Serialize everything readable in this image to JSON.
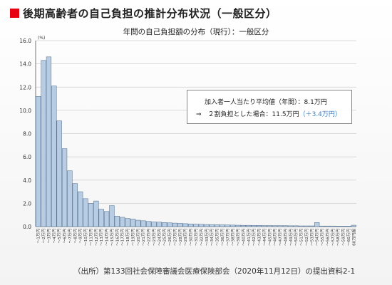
{
  "title": "後期高齢者の自己負担の推計分布状況（一般区分）",
  "subtitle": "年間の自己負担額の分布（現行）：一般区分",
  "source_note": "（出所）第133回社会保障審議会医療保険部会（2020年11月12日）の提出資料2-1",
  "info_box": {
    "line1": "加入者一人当たり平均値（年間）：8.1万円",
    "line2_prefix": "⇒　２割負担とした場合：11.5万円",
    "line2_highlight": "（＋3.4万円）"
  },
  "colors": {
    "accent": "#e60012",
    "bar_fill": "#b8cce4",
    "bar_stroke": "#4a6a8a",
    "highlight": "#3a7fc4"
  },
  "chart_data": {
    "type": "bar",
    "y_unit_label": "(%)",
    "ylim": [
      0,
      16
    ],
    "yticks": [
      "0.0",
      "2.0",
      "4.0",
      "6.0",
      "8.0",
      "10.0",
      "12.0",
      "14.0",
      "16.0"
    ],
    "grid": true,
    "categories": [
      "～1万円",
      "～2万円",
      "～3万円",
      "～4万円",
      "～5万円",
      "～6万円",
      "～7万円",
      "～8万円",
      "～9万円",
      "～10万円",
      "～11万円",
      "～12万円",
      "～13万円",
      "～14万円",
      "～15万円",
      "～16万円",
      "～17万円",
      "～18万円",
      "～19万円",
      "～20万円",
      "～21万円",
      "～22万円",
      "～23万円",
      "～24万円",
      "～25万円",
      "～26万円",
      "～27万円",
      "～28万円",
      "～29万円",
      "～30万円",
      "～31万円",
      "～32万円",
      "～33万円",
      "～34万円",
      "～35万円",
      "～36万円",
      "～37万円",
      "～38万円",
      "～39万円",
      "～40万円",
      "～41万円",
      "～42万円",
      "～43万円",
      "～44万円",
      "～45万円",
      "～46万円",
      "～47万円",
      "～48万円",
      "～49万円",
      "～50万円",
      "～51万円",
      "～52万円",
      "～53万円",
      "～54万円",
      "～55万円",
      "～56万円",
      "～57万円",
      "～58万円",
      "～59万円",
      "～60万円",
      "60万円超"
    ],
    "values": [
      11.2,
      14.3,
      14.6,
      12.1,
      9.1,
      6.7,
      4.8,
      3.7,
      3.0,
      2.4,
      2.0,
      2.2,
      1.5,
      1.3,
      1.8,
      0.9,
      0.8,
      0.7,
      0.65,
      0.55,
      0.5,
      0.45,
      0.4,
      0.38,
      0.35,
      0.32,
      0.3,
      0.28,
      0.25,
      0.23,
      0.21,
      0.2,
      0.18,
      0.17,
      0.16,
      0.15,
      0.14,
      0.13,
      0.12,
      0.11,
      0.11,
      0.1,
      0.1,
      0.09,
      0.09,
      0.08,
      0.08,
      0.08,
      0.07,
      0.07,
      0.06,
      0.06,
      0.06,
      0.35,
      0.05,
      0.05,
      0.05,
      0.04,
      0.04,
      0.04,
      0.12
    ]
  }
}
